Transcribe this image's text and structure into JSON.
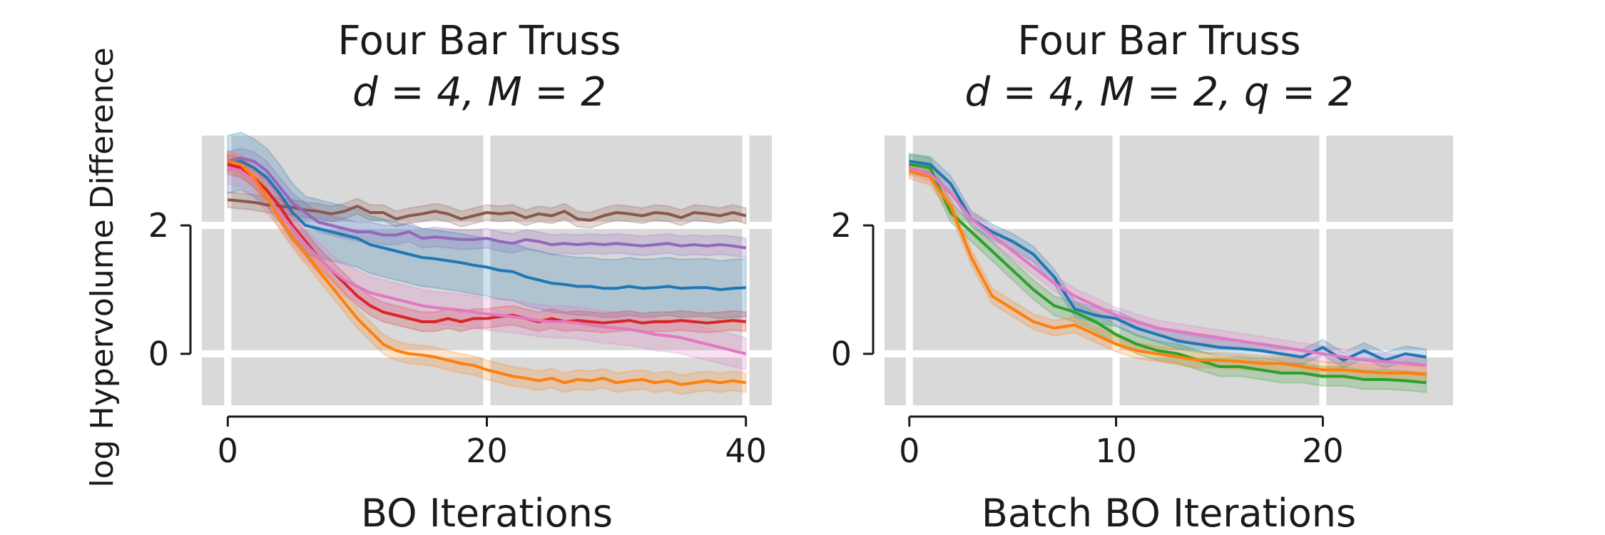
{
  "figure": {
    "ylabel": "log Hypervolume Difference"
  },
  "colors": {
    "panel_bg": "#d9d9d9",
    "grid": "#ffffff",
    "axis": "#1a1a1a"
  },
  "chart_data": [
    {
      "type": "line",
      "title_line1": "Four Bar Truss",
      "title_line2": "d = 4, M = 2",
      "xlabel": "BO Iterations",
      "ylabel": "log Hypervolume Difference",
      "xlim": [
        -2,
        42
      ],
      "ylim": [
        -0.8,
        3.4
      ],
      "xticks": [
        0,
        20,
        40
      ],
      "yticks": [
        0,
        2
      ],
      "grid": true,
      "legend": "none",
      "series": [
        {
          "color": "#8c564b",
          "band": 0.12,
          "x": [
            0,
            1,
            2,
            3,
            4,
            5,
            6,
            7,
            8,
            9,
            10,
            11,
            12,
            13,
            14,
            15,
            16,
            17,
            18,
            19,
            20,
            21,
            22,
            23,
            24,
            25,
            26,
            27,
            28,
            29,
            30,
            31,
            32,
            33,
            34,
            35,
            36,
            37,
            38,
            39,
            40
          ],
          "values": [
            2.4,
            2.38,
            2.36,
            2.32,
            2.3,
            2.28,
            2.24,
            2.22,
            2.18,
            2.22,
            2.3,
            2.2,
            2.2,
            2.1,
            2.15,
            2.18,
            2.22,
            2.18,
            2.1,
            2.15,
            2.2,
            2.18,
            2.2,
            2.12,
            2.18,
            2.15,
            2.22,
            2.1,
            2.08,
            2.15,
            2.2,
            2.18,
            2.15,
            2.2,
            2.18,
            2.12,
            2.2,
            2.18,
            2.15,
            2.2,
            2.15
          ]
        },
        {
          "color": "#9467bd",
          "band": 0.15,
          "x": [
            0,
            1,
            2,
            3,
            4,
            5,
            6,
            7,
            8,
            9,
            10,
            11,
            12,
            13,
            14,
            15,
            16,
            17,
            18,
            19,
            20,
            21,
            22,
            23,
            24,
            25,
            26,
            27,
            28,
            29,
            30,
            31,
            32,
            33,
            34,
            35,
            36,
            37,
            38,
            39,
            40
          ],
          "values": [
            3.0,
            3.05,
            3.0,
            2.85,
            2.6,
            2.35,
            2.2,
            2.05,
            2.0,
            1.95,
            1.9,
            1.9,
            1.85,
            1.85,
            1.9,
            1.8,
            1.82,
            1.8,
            1.78,
            1.78,
            1.8,
            1.75,
            1.72,
            1.78,
            1.75,
            1.7,
            1.72,
            1.7,
            1.72,
            1.7,
            1.72,
            1.7,
            1.68,
            1.7,
            1.72,
            1.68,
            1.7,
            1.68,
            1.7,
            1.68,
            1.65
          ]
        },
        {
          "color": "#1f77b4",
          "band": 0.45,
          "x": [
            0,
            1,
            2,
            3,
            4,
            5,
            6,
            7,
            8,
            9,
            10,
            11,
            12,
            13,
            14,
            15,
            16,
            17,
            18,
            19,
            20,
            21,
            22,
            23,
            24,
            25,
            26,
            27,
            28,
            29,
            30,
            31,
            32,
            33,
            34,
            35,
            36,
            37,
            38,
            39,
            40
          ],
          "values": [
            2.95,
            3.0,
            2.9,
            2.75,
            2.5,
            2.2,
            2.0,
            1.95,
            1.9,
            1.85,
            1.8,
            1.7,
            1.65,
            1.6,
            1.55,
            1.5,
            1.48,
            1.45,
            1.42,
            1.38,
            1.35,
            1.3,
            1.28,
            1.2,
            1.15,
            1.1,
            1.08,
            1.05,
            1.05,
            1.02,
            1.02,
            1.05,
            1.02,
            1.03,
            1.05,
            1.02,
            1.03,
            1.03,
            1.0,
            1.02,
            1.03
          ]
        },
        {
          "color": "#d62728",
          "band": 0.15,
          "x": [
            0,
            1,
            2,
            3,
            4,
            5,
            6,
            7,
            8,
            9,
            10,
            11,
            12,
            13,
            14,
            15,
            16,
            17,
            18,
            19,
            20,
            21,
            22,
            23,
            24,
            25,
            26,
            27,
            28,
            29,
            30,
            31,
            32,
            33,
            34,
            35,
            36,
            37,
            38,
            39,
            40
          ],
          "values": [
            2.95,
            2.9,
            2.75,
            2.55,
            2.3,
            2.0,
            1.75,
            1.5,
            1.3,
            1.1,
            0.9,
            0.75,
            0.65,
            0.6,
            0.55,
            0.5,
            0.5,
            0.55,
            0.5,
            0.55,
            0.55,
            0.58,
            0.6,
            0.55,
            0.5,
            0.55,
            0.5,
            0.52,
            0.5,
            0.48,
            0.5,
            0.52,
            0.48,
            0.5,
            0.5,
            0.52,
            0.5,
            0.48,
            0.5,
            0.52,
            0.5
          ]
        },
        {
          "color": "#e377c2",
          "band": 0.25,
          "x": [
            0,
            1,
            2,
            3,
            4,
            5,
            6,
            7,
            8,
            9,
            10,
            11,
            12,
            13,
            14,
            15,
            16,
            17,
            18,
            19,
            20,
            21,
            22,
            23,
            24,
            25,
            26,
            27,
            28,
            29,
            30,
            31,
            32,
            33,
            34,
            35,
            36,
            37,
            38,
            39,
            40
          ],
          "values": [
            2.9,
            2.85,
            2.7,
            2.45,
            2.2,
            1.95,
            1.7,
            1.5,
            1.3,
            1.15,
            1.05,
            0.95,
            0.9,
            0.85,
            0.8,
            0.75,
            0.72,
            0.7,
            0.68,
            0.65,
            0.62,
            0.6,
            0.58,
            0.55,
            0.52,
            0.5,
            0.5,
            0.48,
            0.45,
            0.42,
            0.4,
            0.38,
            0.35,
            0.3,
            0.28,
            0.25,
            0.2,
            0.15,
            0.1,
            0.05,
            0.0
          ]
        },
        {
          "color": "#ff7f0e",
          "band": 0.15,
          "x": [
            0,
            1,
            2,
            3,
            4,
            5,
            6,
            7,
            8,
            9,
            10,
            11,
            12,
            13,
            14,
            15,
            16,
            17,
            18,
            19,
            20,
            21,
            22,
            23,
            24,
            25,
            26,
            27,
            28,
            29,
            30,
            31,
            32,
            33,
            34,
            35,
            36,
            37,
            38,
            39,
            40
          ],
          "values": [
            3.0,
            2.95,
            2.75,
            2.45,
            2.1,
            1.8,
            1.55,
            1.3,
            1.05,
            0.8,
            0.55,
            0.35,
            0.15,
            0.05,
            0.0,
            -0.02,
            -0.05,
            -0.1,
            -0.15,
            -0.18,
            -0.25,
            -0.3,
            -0.35,
            -0.38,
            -0.42,
            -0.38,
            -0.45,
            -0.4,
            -0.42,
            -0.38,
            -0.45,
            -0.42,
            -0.4,
            -0.45,
            -0.42,
            -0.48,
            -0.45,
            -0.42,
            -0.45,
            -0.42,
            -0.45
          ]
        }
      ]
    },
    {
      "type": "line",
      "title_line1": "Four Bar Truss",
      "title_line2": "d = 4, M = 2, q = 2",
      "xlabel": "Batch BO Iterations",
      "ylabel": "",
      "xlim": [
        -1.2,
        26.3
      ],
      "ylim": [
        -0.8,
        3.4
      ],
      "xticks": [
        0,
        10,
        20
      ],
      "yticks": [
        0,
        2
      ],
      "grid": true,
      "legend": "none",
      "series": [
        {
          "color": "#1f77b4",
          "band": 0.12,
          "x": [
            0,
            1,
            2,
            3,
            4,
            5,
            6,
            7,
            8,
            9,
            10,
            11,
            12,
            13,
            14,
            15,
            16,
            17,
            18,
            19,
            20,
            21,
            22,
            23,
            24,
            25
          ],
          "values": [
            3.0,
            2.95,
            2.65,
            2.1,
            1.9,
            1.75,
            1.55,
            1.2,
            0.7,
            0.6,
            0.55,
            0.4,
            0.3,
            0.2,
            0.15,
            0.1,
            0.08,
            0.05,
            0.0,
            -0.05,
            0.1,
            -0.1,
            0.05,
            -0.1,
            0.0,
            -0.05
          ]
        },
        {
          "color": "#2ca02c",
          "band": 0.15,
          "x": [
            0,
            1,
            2,
            3,
            4,
            5,
            6,
            7,
            8,
            9,
            10,
            11,
            12,
            13,
            14,
            15,
            16,
            17,
            18,
            19,
            20,
            21,
            22,
            23,
            24,
            25
          ],
          "values": [
            2.95,
            2.9,
            2.2,
            1.9,
            1.6,
            1.3,
            1.0,
            0.75,
            0.65,
            0.5,
            0.3,
            0.15,
            0.05,
            0.0,
            -0.1,
            -0.2,
            -0.2,
            -0.25,
            -0.3,
            -0.3,
            -0.35,
            -0.35,
            -0.4,
            -0.4,
            -0.42,
            -0.45
          ]
        },
        {
          "color": "#e377c2",
          "band": 0.12,
          "x": [
            0,
            1,
            2,
            3,
            4,
            5,
            6,
            7,
            8,
            9,
            10,
            11,
            12,
            13,
            14,
            15,
            16,
            17,
            18,
            19,
            20,
            21,
            22,
            23,
            24,
            25
          ],
          "values": [
            2.9,
            2.8,
            2.5,
            2.1,
            1.85,
            1.6,
            1.35,
            1.1,
            0.9,
            0.75,
            0.6,
            0.5,
            0.4,
            0.35,
            0.3,
            0.25,
            0.2,
            0.15,
            0.1,
            0.05,
            0.0,
            -0.05,
            -0.1,
            -0.12,
            -0.15,
            -0.18
          ]
        },
        {
          "color": "#ff7f0e",
          "band": 0.12,
          "x": [
            0,
            1,
            2,
            3,
            4,
            5,
            6,
            7,
            8,
            9,
            10,
            11,
            12,
            13,
            14,
            15,
            16,
            17,
            18,
            19,
            20,
            21,
            22,
            23,
            24,
            25
          ],
          "values": [
            2.85,
            2.75,
            2.3,
            1.5,
            0.9,
            0.7,
            0.5,
            0.4,
            0.45,
            0.3,
            0.15,
            0.05,
            0.0,
            -0.05,
            -0.1,
            -0.1,
            -0.12,
            -0.15,
            -0.15,
            -0.2,
            -0.25,
            -0.25,
            -0.28,
            -0.3,
            -0.3,
            -0.32
          ]
        }
      ]
    }
  ]
}
